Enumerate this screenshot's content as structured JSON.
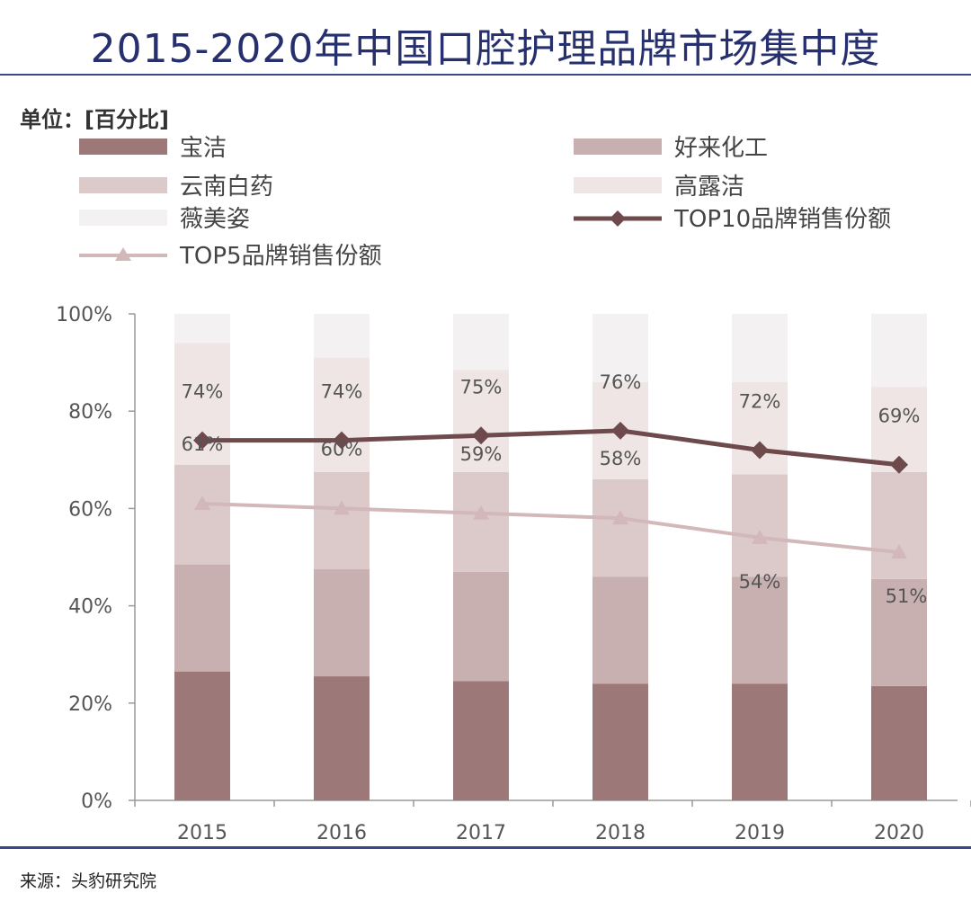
{
  "title": "2015-2020年中国口腔护理品牌市场集中度",
  "unit_label": "单位：[百分比]",
  "source": "来源：头豹研究院",
  "chart_data": {
    "type": "bar",
    "stacked": true,
    "categories": [
      "2015",
      "2016",
      "2017",
      "2018",
      "2019",
      "2020"
    ],
    "ylim": [
      0,
      100
    ],
    "yticks": [
      "0%",
      "20%",
      "40%",
      "60%",
      "80%",
      "100%"
    ],
    "legend_position": "top",
    "series": [
      {
        "name": "宝洁",
        "kind": "bar",
        "color": "#9d7878",
        "values": [
          26.5,
          25.5,
          24.5,
          24,
          24,
          23.5
        ]
      },
      {
        "name": "好来化工",
        "kind": "bar",
        "color": "#c8b0b0",
        "values": [
          22,
          22,
          22.5,
          22,
          22,
          22
        ]
      },
      {
        "name": "云南白药",
        "kind": "bar",
        "color": "#dccacb",
        "values": [
          20.5,
          20,
          20.5,
          20,
          21,
          22
        ]
      },
      {
        "name": "高露洁",
        "kind": "bar",
        "color": "#efe5e5",
        "values": [
          25,
          23.5,
          21,
          20,
          19,
          17.5
        ]
      },
      {
        "name": "薇美姿",
        "kind": "bar",
        "color": "#f3f1f1",
        "values": [
          6,
          9,
          11.5,
          14,
          14,
          15
        ]
      },
      {
        "name": "TOP10品牌销售份额",
        "kind": "line",
        "marker": "diamond",
        "color": "#6e4a4c",
        "values": [
          74,
          74,
          75,
          76,
          72,
          69
        ],
        "labels": [
          "74%",
          "74%",
          "75%",
          "76%",
          "72%",
          "69%"
        ]
      },
      {
        "name": "TOP5品牌销售份额",
        "kind": "line",
        "marker": "triangle",
        "color": "#d3b8b9",
        "values": [
          61,
          60,
          59,
          58,
          54,
          51
        ],
        "labels": [
          "61%",
          "60%",
          "59%",
          "58%",
          "54%",
          "51%"
        ]
      }
    ]
  }
}
